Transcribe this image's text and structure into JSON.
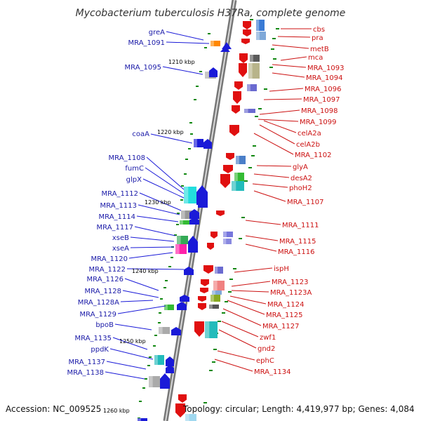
{
  "title": "Mycobacterium tuberculosis H37Ra, complete genome",
  "footer": {
    "accession": "Accession: NC_009525",
    "topology": "Topology: circular; Length: 4,419,977 bp; Genes: 4,084"
  },
  "kbp_marks": [
    "1210 kbp",
    "1220 kbp",
    "1230 kbp",
    "1240 kbp",
    "1250 kbp",
    "1260 kbp"
  ],
  "left_labels": [
    "greA",
    "MRA_1091",
    "MRA_1095",
    "coaA",
    "MRA_1108",
    "fumC",
    "glpX",
    "MRA_1112",
    "MRA_1113",
    "MRA_1114",
    "MRA_1117",
    "xseB",
    "xseA",
    "MRA_1120",
    "MRA_1122",
    "MRA_1126",
    "MRA_1128",
    "MRA_1128A",
    "MRA_1129",
    "bpoB",
    "MRA_1135",
    "ppdK",
    "MRA_1137",
    "MRA_1138"
  ],
  "right_labels": [
    "cbs",
    "pra",
    "metB",
    "mca",
    "MRA_1093",
    "MRA_1094",
    "MRA_1096",
    "MRA_1097",
    "MRA_1098",
    "MRA_1099",
    "celA2a",
    "celA2b",
    "MRA_1102",
    "glyA",
    "desA2",
    "phoH2",
    "MRA_1107",
    "MRA_1111",
    "MRA_1115",
    "MRA_1116",
    "ispH",
    "MRA_1123",
    "MRA_1123A",
    "MRA_1124",
    "MRA_1125",
    "MRA_1127",
    "zwf1",
    "gnd2",
    "ephC",
    "MRA_1134"
  ],
  "colors": {
    "left_strand": "#1a1ad8",
    "right_strand": "#e01010",
    "label_left": "#1a1aa8",
    "label_right": "#cc1111",
    "backbone": "#888888",
    "tick": "#118811"
  }
}
